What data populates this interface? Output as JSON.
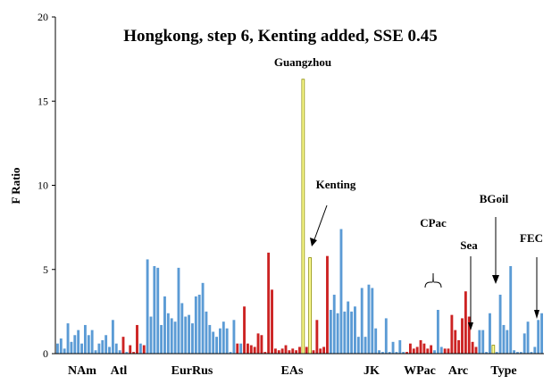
{
  "chart_data": {
    "type": "bar",
    "title": "Hongkong, step 6, Kenting added, SSE 0.45",
    "ylabel": "F Ratio",
    "xlabel": "",
    "ylim": [
      0,
      20
    ],
    "yticks": [
      0,
      5,
      10,
      15,
      20
    ],
    "grid": false,
    "colors": {
      "blue": "#5b9bd5",
      "red": "#cc2222",
      "yellow": "#ffff99"
    },
    "values": [
      0.6,
      0.9,
      0.3,
      1.8,
      0.7,
      1.1,
      1.4,
      0.6,
      1.7,
      1.1,
      1.4,
      0.2,
      0.6,
      0.8,
      1.1,
      0.4,
      2.0,
      0.6,
      0.2,
      1.0,
      0.1,
      0.5,
      0.1,
      1.7,
      0.6,
      0.5,
      5.6,
      2.2,
      5.2,
      5.1,
      1.7,
      3.4,
      2.4,
      2.1,
      1.9,
      5.1,
      3.0,
      2.2,
      2.3,
      1.8,
      3.4,
      3.5,
      4.2,
      2.5,
      1.7,
      1.3,
      1.0,
      1.5,
      1.9,
      1.5,
      0.1,
      2.0,
      0.6,
      0.6,
      2.8,
      0.6,
      0.5,
      0.4,
      1.2,
      1.1,
      0.1,
      6.0,
      3.8,
      0.3,
      0.2,
      0.3,
      0.5,
      0.2,
      0.3,
      0.2,
      0.4,
      16.3,
      0.4,
      5.7,
      0.2,
      2.0,
      0.3,
      0.4,
      5.8,
      2.6,
      3.5,
      2.4,
      7.4,
      2.5,
      3.1,
      2.5,
      2.8,
      1.0,
      3.9,
      1.0,
      4.1,
      3.9,
      1.5,
      0.2,
      0.1,
      2.1,
      0.1,
      0.7,
      0.1,
      0.8,
      0.1,
      0.1,
      0.6,
      0.3,
      0.4,
      0.8,
      0.6,
      0.3,
      0.5,
      0.2,
      2.6,
      0.4,
      0.3,
      0.3,
      2.3,
      1.4,
      0.8,
      2.1,
      3.7,
      2.2,
      0.7,
      0.4,
      1.4,
      1.4,
      0.1,
      2.4,
      0.5,
      0.1,
      3.5,
      1.7,
      1.4,
      5.2,
      0.2,
      0.1,
      0.1,
      1.2,
      1.9,
      0.1,
      0.4,
      2.0,
      2.4
    ],
    "bar_colors": [
      "blue",
      "blue",
      "blue",
      "blue",
      "blue",
      "blue",
      "blue",
      "blue",
      "blue",
      "blue",
      "blue",
      "blue",
      "blue",
      "blue",
      "blue",
      "blue",
      "blue",
      "blue",
      "blue",
      "red",
      "blue",
      "red",
      "red",
      "red",
      "blue",
      "red",
      "blue",
      "blue",
      "blue",
      "blue",
      "blue",
      "blue",
      "blue",
      "blue",
      "blue",
      "blue",
      "blue",
      "blue",
      "blue",
      "blue",
      "blue",
      "blue",
      "blue",
      "blue",
      "blue",
      "blue",
      "blue",
      "blue",
      "blue",
      "blue",
      "blue",
      "blue",
      "red",
      "blue",
      "red",
      "red",
      "red",
      "red",
      "red",
      "red",
      "red",
      "red",
      "red",
      "red",
      "red",
      "red",
      "red",
      "red",
      "red",
      "red",
      "red",
      "yellow",
      "red",
      "yellow",
      "red",
      "red",
      "red",
      "red",
      "red",
      "blue",
      "blue",
      "blue",
      "blue",
      "blue",
      "blue",
      "blue",
      "blue",
      "blue",
      "blue",
      "blue",
      "blue",
      "blue",
      "blue",
      "blue",
      "blue",
      "blue",
      "blue",
      "blue",
      "blue",
      "blue",
      "blue",
      "red",
      "red",
      "red",
      "red",
      "red",
      "red",
      "red",
      "red",
      "blue",
      "blue",
      "blue",
      "red",
      "red",
      "red",
      "red",
      "red",
      "red",
      "red",
      "red",
      "red",
      "red",
      "blue",
      "blue",
      "blue",
      "blue",
      "yellow",
      "blue",
      "blue",
      "blue",
      "blue",
      "blue",
      "blue",
      "blue",
      "blue",
      "blue",
      "blue",
      "blue",
      "blue"
    ],
    "group_labels": [
      "NAm",
      "Atl",
      "EurRus",
      "EAs",
      "JK",
      "WPac",
      "Arc",
      "Type"
    ],
    "annotations": [
      "Guangzhou",
      "Kenting",
      "CPac",
      "Sea",
      "BGoil",
      "FEC"
    ]
  }
}
